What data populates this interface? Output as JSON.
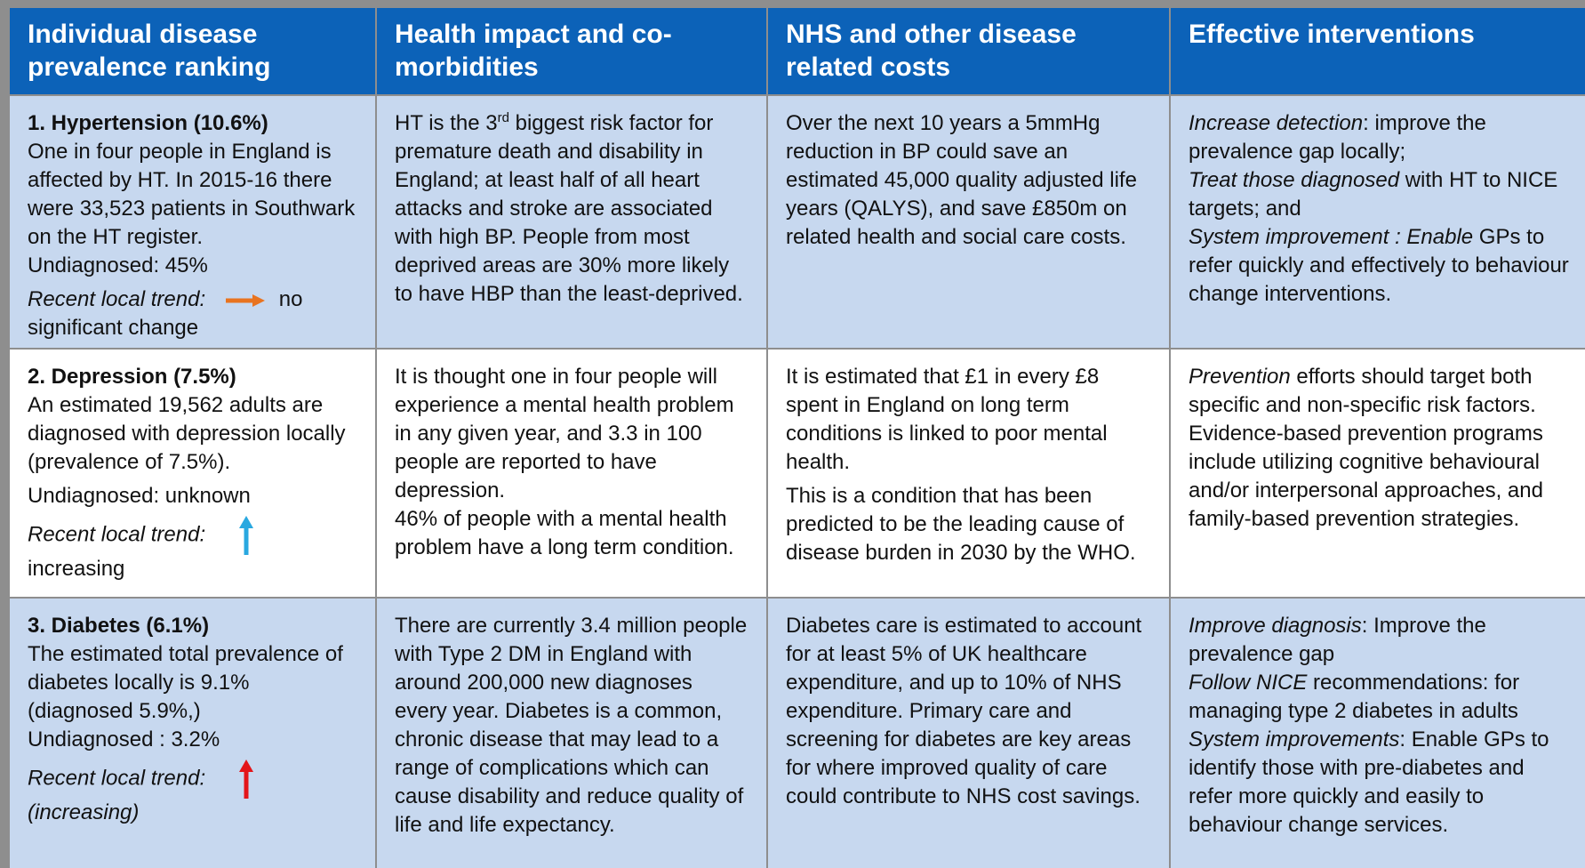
{
  "header": [
    "Individual disease prevalence ranking",
    "Health impact and co-morbidities",
    "NHS and other disease related costs",
    "Effective interventions"
  ],
  "rows": [
    {
      "ranking": {
        "title": "1.   Hypertension (10.6%)",
        "body": "One in four people in England is affected by HT. In 2015-16 there were 33,523 patients in Southwark on the HT register.",
        "undiagnosed": "Undiagnosed:  45%",
        "trend_label": "Recent local trend:",
        "trend_value": "no significant change"
      },
      "impact": [
        "HT is the 3",
        "rd",
        " biggest risk factor for premature death and disability in England;  at least half of all heart attacks and stroke are associated with high BP. People from most deprived areas are 30% more likely to have HBP than the least-deprived."
      ],
      "costs": [
        "Over the next 10 years a 5mmHg reduction in BP could save an estimated 45,000 quality adjusted life years (QALYS), and save £850m on related health and social care costs."
      ],
      "interventions": [
        [
          "Increase detection",
          ": improve the prevalence gap locally;"
        ],
        [
          "Treat those diagnosed",
          " with HT to NICE targets; and"
        ],
        [
          "System improvement : Enable",
          " GPs to refer quickly and effectively to behaviour change interventions."
        ]
      ]
    },
    {
      "ranking": {
        "title": "2. Depression (7.5%)",
        "body": "An estimated 19,562 adults are diagnosed with depression locally (prevalence of 7.5%).",
        "undiagnosed": "Undiagnosed: unknown",
        "trend_label": "Recent local trend:",
        "trend_value": "increasing"
      },
      "impact": [
        "It is thought one in four people will experience a mental health problem in any given year, and 3.3 in 100 people are reported to have depression.",
        "46% of people with a mental health problem have a long term condition."
      ],
      "costs": [
        "It is estimated that £1 in every £8 spent in England on long term conditions is linked to poor mental health.",
        "This is a condition that has been predicted to be the leading cause of disease burden in 2030 by the WHO."
      ],
      "interventions": [
        [
          "Prevention",
          " efforts should target both specific and non-specific risk factors. Evidence-based prevention programs include utilizing cognitive behavioural and/or interpersonal approaches, and family-based prevention strategies."
        ]
      ]
    },
    {
      "ranking": {
        "title": "3. Diabetes  (6.1%)",
        "body": "The estimated total prevalence of diabetes locally is 9.1% (diagnosed 5.9%,)",
        "undiagnosed": "Undiagnosed : 3.2%",
        "trend_label": "Recent local trend:",
        "trend_value": "(increasing)"
      },
      "impact": [
        "There are currently 3.4 million people with Type 2 DM in England with around 200,000 new diagnoses every year. Diabetes is a common, chronic disease that may lead to a range of complications which can cause disability and reduce quality of life and life expectancy."
      ],
      "costs": [
        "Diabetes care is estimated to account for at least 5% of UK healthcare expenditure, and up to 10% of NHS expenditure. Primary care and screening for diabetes are key areas for where improved quality of care could contribute to NHS cost savings."
      ],
      "interventions": [
        [
          "Improve diagnosis",
          ": Improve the prevalence gap"
        ],
        [
          "Follow NICE",
          " recommendations: for managing type 2 diabetes in adults"
        ],
        [
          "System improvements",
          ":  Enable GPs to identify those with pre-diabetes and refer more quickly and easily to behaviour change services."
        ]
      ]
    }
  ]
}
